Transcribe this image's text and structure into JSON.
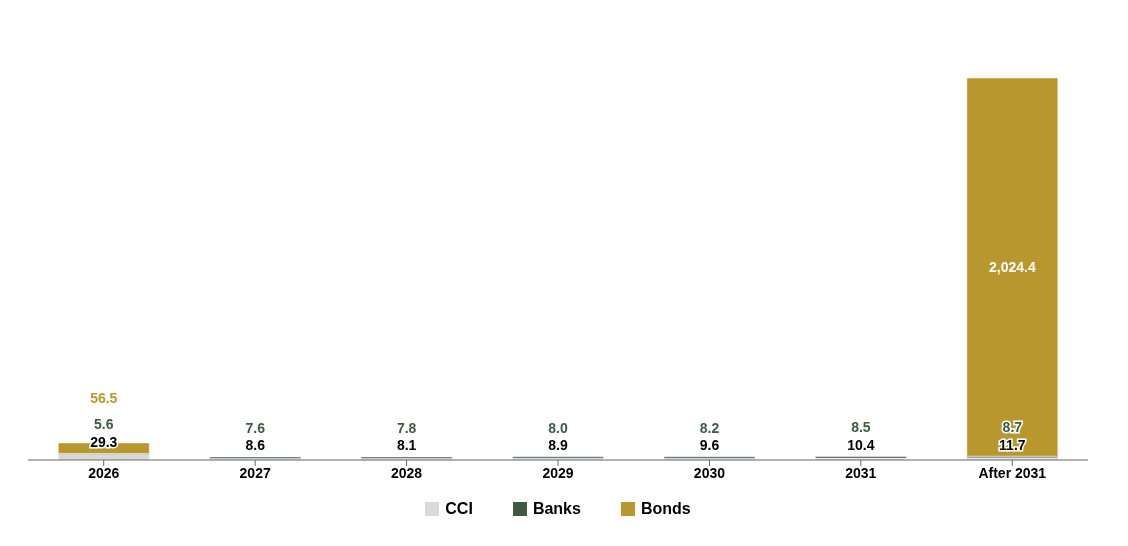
{
  "chart_data": {
    "type": "bar",
    "stacked": true,
    "legend": "bottom",
    "grid": false,
    "categories": [
      "2026",
      "2027",
      "2028",
      "2029",
      "2030",
      "2031",
      "After 2031"
    ],
    "series": [
      {
        "name": "CCI",
        "color": "#d9d9d9",
        "values": [
          29.3,
          8.6,
          8.1,
          8.9,
          9.6,
          10.4,
          11.7
        ],
        "value_labels": [
          "29.3",
          "8.6",
          "8.1",
          "8.9",
          "9.6",
          "10.4",
          "11.7"
        ]
      },
      {
        "name": "Banks",
        "color": "#3e5a45",
        "values": [
          5.6,
          7.6,
          7.8,
          8.0,
          8.2,
          8.5,
          8.7
        ],
        "value_labels": [
          "5.6",
          "7.6",
          "7.8",
          "8.0",
          "8.2",
          "8.5",
          "8.7"
        ]
      },
      {
        "name": "Bonds",
        "color": "#b8982e",
        "values": [
          56.5,
          null,
          null,
          null,
          null,
          null,
          2024.4
        ],
        "value_labels": [
          "56.5",
          null,
          null,
          null,
          null,
          null,
          "2,024.4"
        ]
      }
    ]
  }
}
